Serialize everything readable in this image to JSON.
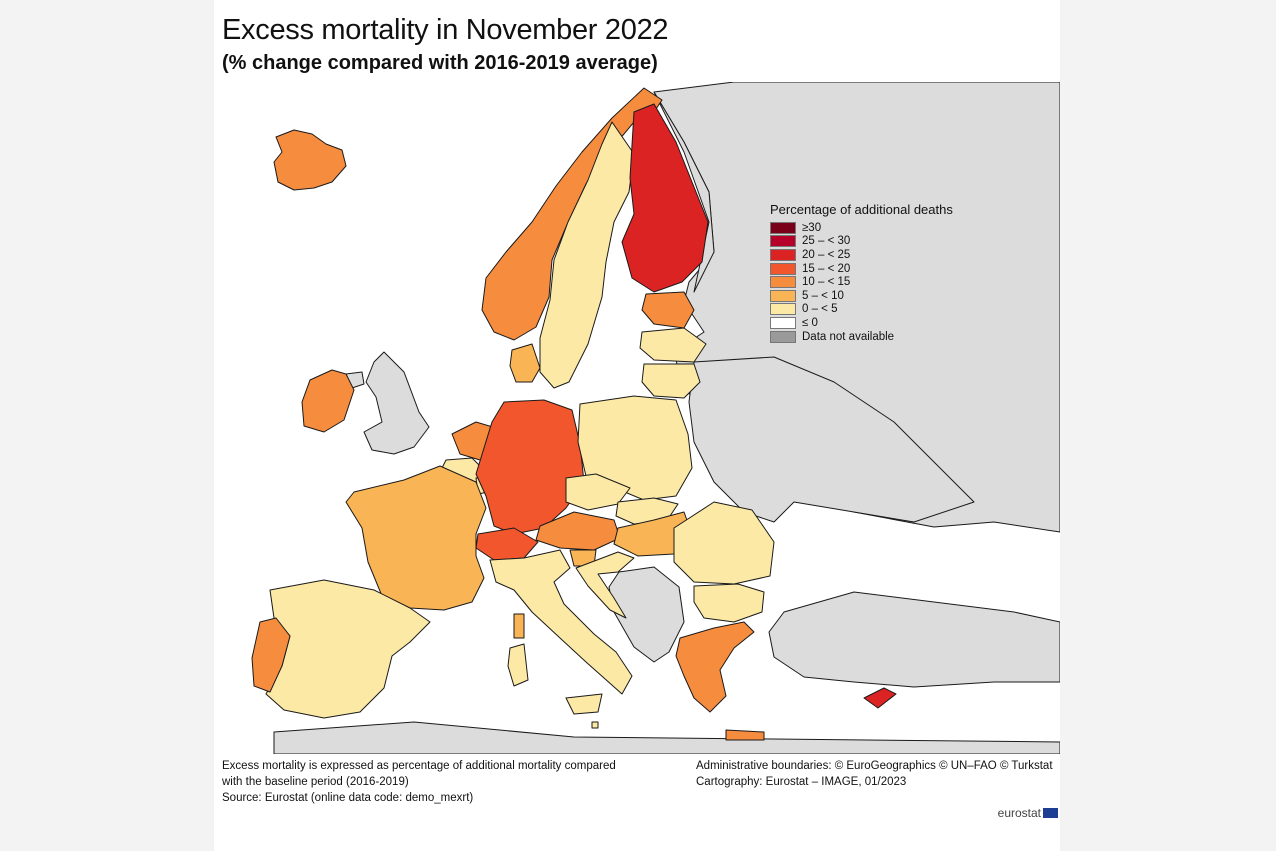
{
  "title": "Excess mortality in November 2022",
  "subtitle": "(% change compared with 2016-2019 average)",
  "legend": {
    "title": "Percentage of additional deaths",
    "items": [
      {
        "label": "≥30",
        "color": "#7a0019"
      },
      {
        "label": "25 – < 30",
        "color": "#b5002a"
      },
      {
        "label": "20 – < 25",
        "color": "#dc2323"
      },
      {
        "label": "15 – < 20",
        "color": "#f1562d"
      },
      {
        "label": "10 – < 15",
        "color": "#f68c3e"
      },
      {
        "label": "5 – < 10",
        "color": "#f9b456"
      },
      {
        "label": "0 – < 5",
        "color": "#fce9a6"
      },
      {
        "label": "≤ 0",
        "color": "#ffffff"
      },
      {
        "label": "Data not available",
        "color": "#9a9a9a"
      }
    ]
  },
  "colors": {
    "land_no_data": "#dcdcdc",
    "sea": "#ffffff",
    "border": "#1a1a1a"
  },
  "notes": {
    "left": [
      "Excess mortality is expressed as percentage of additional mortality compared",
      "with the baseline period (2016-2019)",
      "Source: Eurostat (online data code: demo_mexrt)"
    ],
    "right": [
      "Administrative boundaries: © EuroGeographics © UN–FAO © Turkstat",
      "Cartography: Eurostat – IMAGE, 01/2023"
    ]
  },
  "brand": "eurostat",
  "map_data": {
    "Finland": "20 – < 25",
    "Cyprus": "20 – < 25",
    "Germany": "15 – < 20",
    "Switzerland": "15 – < 20",
    "Austria": "10 – < 15",
    "Norway": "10 – < 15",
    "Iceland": "10 – < 15",
    "Ireland": "10 – < 15",
    "Portugal": "10 – < 15",
    "Greece": "10 – < 15",
    "Estonia": "10 – < 15",
    "Netherlands": "10 – < 15",
    "France": "5 – < 10",
    "Denmark": "5 – < 10",
    "Hungary": "5 – < 10",
    "Slovenia": "5 – < 10",
    "Spain": "0 – < 5",
    "Italy": "0 – < 5",
    "Sweden": "0 – < 5",
    "Poland": "0 – < 5",
    "Czechia": "0 – < 5",
    "Slovakia": "0 – < 5",
    "Lithuania": "0 – < 5",
    "Latvia": "0 – < 5",
    "Belgium": "0 – < 5",
    "Luxembourg": "0 – < 5",
    "Croatia": "0 – < 5",
    "Romania": "0 – < 5",
    "Bulgaria": "0 – < 5"
  }
}
